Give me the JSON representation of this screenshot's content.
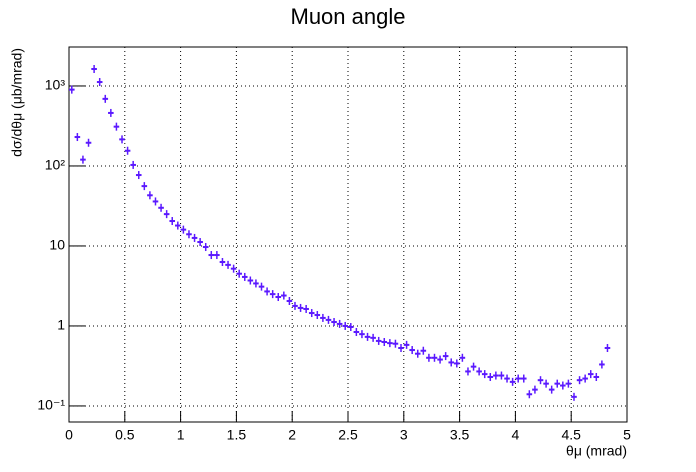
{
  "chart_data": {
    "type": "histogram",
    "title": "Muon angle",
    "x_label": "θμ (mrad)",
    "y_label": "dσ/dθμ (μb/mrad)",
    "color": "#5b19ff",
    "log_y": true,
    "grid": true,
    "bins": [
      0,
      0.05,
      0.1,
      0.15,
      0.2,
      0.25,
      0.3,
      0.35,
      0.4,
      0.45,
      0.5,
      0.55,
      0.6,
      0.65,
      0.7,
      0.75,
      0.8,
      0.85,
      0.9,
      0.95,
      1,
      1.05,
      1.1,
      1.15,
      1.2,
      1.25,
      1.3,
      1.35,
      1.4,
      1.45,
      1.5,
      1.55,
      1.6,
      1.65,
      1.7,
      1.75,
      1.8,
      1.85,
      1.9,
      1.95,
      2,
      2.05,
      2.1,
      2.15,
      2.2,
      2.25,
      2.3,
      2.35,
      2.4,
      2.45,
      2.5,
      2.55,
      2.6,
      2.65,
      2.7,
      2.75,
      2.8,
      2.85,
      2.9,
      2.95,
      3,
      3.05,
      3.1,
      3.15,
      3.2,
      3.25,
      3.3,
      3.35,
      3.4,
      3.45,
      3.5,
      3.55,
      3.6,
      3.65,
      3.7,
      3.75,
      3.8,
      3.85,
      3.9,
      3.95,
      4,
      4.05,
      4.1,
      4.15,
      4.2,
      4.25,
      4.3,
      4.35,
      4.4,
      4.45,
      4.5,
      4.55,
      4.6,
      4.65,
      4.7,
      4.75,
      4.8,
      4.85
    ],
    "values": [
      900,
      230,
      120,
      195,
      1630,
      1120,
      690,
      460,
      310,
      215,
      155,
      103,
      77,
      56,
      43,
      36,
      30,
      25,
      20.5,
      18,
      16,
      14,
      12.6,
      11.2,
      9.7,
      7.7,
      7.7,
      6.3,
      5.8,
      5.2,
      4.5,
      4.1,
      3.7,
      3.4,
      3.1,
      2.7,
      2.5,
      2.3,
      2.4,
      2.05,
      1.78,
      1.68,
      1.63,
      1.45,
      1.37,
      1.26,
      1.19,
      1.12,
      1.06,
      1.0,
      0.97,
      0.84,
      0.79,
      0.73,
      0.71,
      0.65,
      0.63,
      0.61,
      0.6,
      0.53,
      0.58,
      0.5,
      0.45,
      0.49,
      0.4,
      0.4,
      0.38,
      0.42,
      0.35,
      0.34,
      0.4,
      0.27,
      0.31,
      0.27,
      0.25,
      0.23,
      0.24,
      0.24,
      0.22,
      0.2,
      0.22,
      0.22,
      0.14,
      0.16,
      0.21,
      0.19,
      0.16,
      0.19,
      0.18,
      0.19,
      0.13,
      0.21,
      0.22,
      0.25,
      0.23,
      0.33,
      0.53
    ],
    "xlim": [
      0,
      5
    ],
    "xticks": [
      0,
      0.5,
      1,
      1.5,
      2,
      2.5,
      3,
      3.5,
      4,
      4.5,
      5
    ],
    "ylim": [
      0.063,
      3070
    ],
    "yticks": [
      {
        "value": 0.1,
        "label": "10⁻¹"
      },
      1,
      10,
      {
        "value": 100,
        "label": "10²"
      },
      {
        "value": 1000,
        "label": "10³"
      }
    ]
  }
}
